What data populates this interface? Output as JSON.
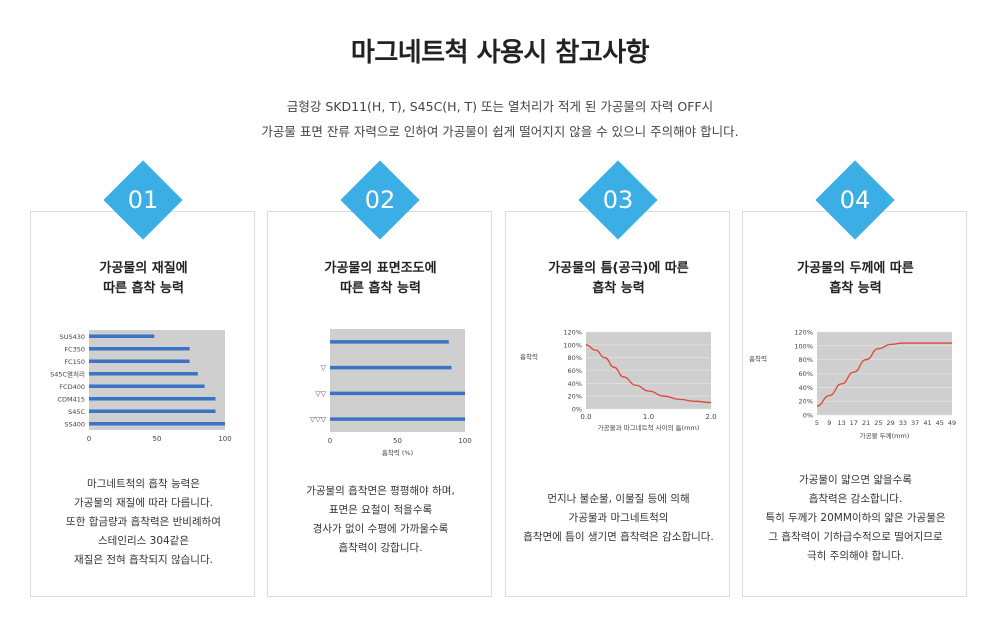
{
  "header": {
    "title": "마그네트척 사용시 참고사항",
    "line1": "금형강 SKD11(H, T), S45C(H, T) 또는 열처리가 적게 된 가공물의 자력 OFF시",
    "line2": "가공물 표면 잔류 자력으로 인하여 가공물이 쉽게 떨어지지 않을 수 있으니 주의해야 합니다."
  },
  "cards": [
    {
      "num": "01",
      "title1": "가공물의 재질에",
      "title2": "따른 흡착 능력",
      "desc": [
        "마그네트척의 흡착 능력은",
        "가공물의 재질에 따라 다릅니다.",
        "또한 합금량과 흡착력은 반비례하여",
        "스테인리스 304같은",
        "재질은 전혀 흡착되지 않습니다."
      ]
    },
    {
      "num": "02",
      "title1": "가공물의 표면조도에",
      "title2": "따른 흡착 능력",
      "desc": [
        "가공물의 흡착면은 평평해야 하며,",
        "표면은 요철이 적을수록",
        "경사가 없이 수평에 가까울수록",
        "흡착력이 강합니다."
      ]
    },
    {
      "num": "03",
      "title1": "가공물의 틈(공극)에 따른",
      "title2": "흡착 능력",
      "desc": [
        "먼지나 불순물, 이물질 등에 의해",
        "가공물과 마그네트척의",
        "흡착면에 틈이 생기면 흡착력은 감소합니다."
      ]
    },
    {
      "num": "04",
      "title1": "가공물의 두께에 따른",
      "title2": "흡착 능력",
      "desc": [
        "가공물이 얇으면 얇을수록",
        "흡착력은 감소합니다.",
        "특히 두께가 20MM이하의 얇은 가공물은",
        "그 흡착력이 기하급수적으로 떨어지므로",
        "극히 주의해야 합니다."
      ]
    }
  ],
  "chart_data": [
    {
      "type": "bar",
      "orientation": "horizontal",
      "categories": [
        "SUS430",
        "FC350",
        "FC150",
        "S45C열처리",
        "FCD400",
        "CDM415",
        "S45C",
        "SS400"
      ],
      "values": [
        48,
        74,
        74,
        80,
        85,
        93,
        93,
        100
      ],
      "xlim": [
        0,
        100
      ],
      "xticks": [
        "0",
        "50",
        "100"
      ],
      "color": "#3a72c4"
    },
    {
      "type": "bar",
      "orientation": "horizontal",
      "categories": [
        "",
        "▽",
        "▽▽",
        "▽▽▽"
      ],
      "values": [
        88,
        90,
        100,
        100
      ],
      "xlim": [
        0,
        100
      ],
      "xticks": [
        "0",
        "50",
        "100"
      ],
      "xlabel": "흡착력 (%)",
      "color": "#3a72c4"
    },
    {
      "type": "line",
      "x": [
        0.0,
        0.15,
        0.3,
        0.45,
        0.6,
        0.8,
        1.0,
        1.25,
        1.5,
        1.75,
        2.0
      ],
      "y": [
        100,
        92,
        80,
        65,
        50,
        37,
        28,
        20,
        15,
        12,
        10
      ],
      "xlim": [
        0,
        2.0
      ],
      "ylim": [
        0,
        120
      ],
      "xticks": [
        "0.0",
        "1.0",
        "2.0"
      ],
      "yticks": [
        "120%",
        "100%",
        "80%",
        "60%",
        "40%",
        "20%",
        "0%"
      ],
      "xlabel": "가공물과 마그네트척 사이의 틈(mm)",
      "ylabel": "흡착력",
      "color": "#e0453a"
    },
    {
      "type": "line",
      "x": [
        5,
        9,
        13,
        17,
        21,
        25,
        29,
        33,
        37,
        41,
        45,
        49
      ],
      "y": [
        13,
        28,
        45,
        62,
        80,
        96,
        102,
        104,
        104,
        104,
        104,
        104
      ],
      "xlim": [
        5,
        49
      ],
      "ylim": [
        0,
        120
      ],
      "xticks": [
        "5",
        "9",
        "13",
        "17",
        "21",
        "25",
        "29",
        "33",
        "37",
        "41",
        "45",
        "49"
      ],
      "yticks": [
        "120%",
        "100%",
        "80%",
        "60%",
        "40%",
        "20%",
        "0%"
      ],
      "xlabel": "가공물 두께(mm)",
      "ylabel": "흡착력",
      "color": "#e0453a"
    }
  ]
}
